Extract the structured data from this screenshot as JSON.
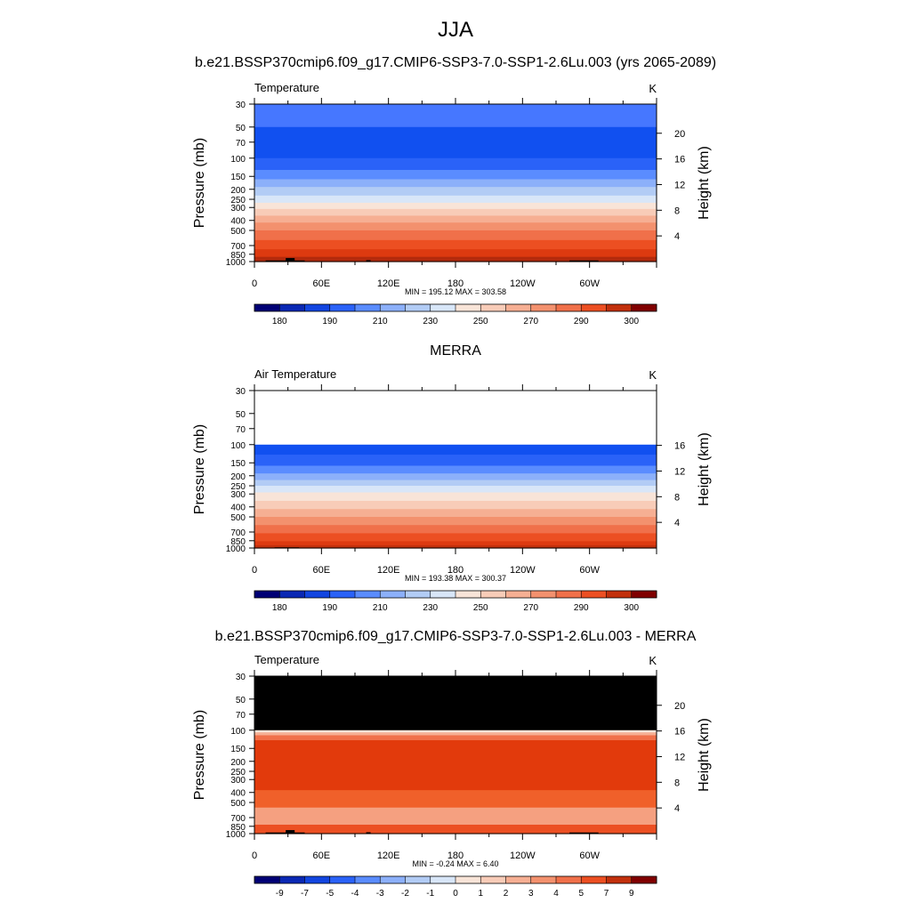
{
  "figure": {
    "title": "JJA",
    "season": "JJA"
  },
  "chart_data": [
    {
      "type": "heatmap",
      "title": "b.e21.BSSP370cmip6.f09_g17.CMIP6-SSP3-7.0-SSP1-2.6Lu.003 (yrs 2065-2089)",
      "left_label": "Temperature",
      "units": "K",
      "ylabel": "Pressure (mb)",
      "y2label": "Height (km)",
      "xticklabels": [
        "0",
        "60E",
        "120E",
        "180",
        "120W",
        "60W"
      ],
      "xtick_lons": [
        0,
        60,
        120,
        180,
        240,
        300
      ],
      "xlim": [
        0,
        360
      ],
      "pressure_levels": [
        30,
        50,
        70,
        100,
        150,
        200,
        250,
        300,
        400,
        500,
        700,
        850,
        1000
      ],
      "ylim_mb": [
        1000,
        30
      ],
      "height_ticks_km": [
        4,
        8,
        12,
        16,
        20
      ],
      "stats": "MIN = 195.12  MAX = 303.58",
      "min": 195.12,
      "max": 303.58,
      "data_top_mb": 30,
      "bands": [
        {
          "top": 30,
          "bottom": 50,
          "color": "#4677FF"
        },
        {
          "top": 50,
          "bottom": 100,
          "color": "#1150F0"
        },
        {
          "top": 100,
          "bottom": 130,
          "color": "#2A62F8"
        },
        {
          "top": 130,
          "bottom": 160,
          "color": "#5A8CFF"
        },
        {
          "top": 160,
          "bottom": 190,
          "color": "#8CB0FA"
        },
        {
          "top": 190,
          "bottom": 230,
          "color": "#B2CCF5"
        },
        {
          "top": 230,
          "bottom": 270,
          "color": "#D8E6F8"
        },
        {
          "top": 270,
          "bottom": 310,
          "color": "#F8E4D8"
        },
        {
          "top": 310,
          "bottom": 360,
          "color": "#F8CCB8"
        },
        {
          "top": 360,
          "bottom": 420,
          "color": "#F6AF93"
        },
        {
          "top": 420,
          "bottom": 500,
          "color": "#F3916E"
        },
        {
          "top": 500,
          "bottom": 620,
          "color": "#F0704A"
        },
        {
          "top": 620,
          "bottom": 760,
          "color": "#EC4F22"
        },
        {
          "top": 760,
          "bottom": 900,
          "color": "#DD3A10"
        },
        {
          "top": 900,
          "bottom": 1000,
          "color": "#B32A0C"
        }
      ],
      "topography": [
        {
          "lon_start": 10,
          "lon_end": 45,
          "top_mb": 975
        },
        {
          "lon_start": 28,
          "lon_end": 36,
          "top_mb": 925
        },
        {
          "lon_start": 100,
          "lon_end": 104,
          "top_mb": 970
        },
        {
          "lon_start": 282,
          "lon_end": 308,
          "top_mb": 975
        }
      ],
      "colorbar": {
        "colors": [
          "#000075",
          "#0A28B4",
          "#1245E0",
          "#2A62F8",
          "#5A8CFF",
          "#8CB0FA",
          "#B2CCF5",
          "#D8E6F8",
          "#F8E4D8",
          "#F8CCB8",
          "#F6AF93",
          "#F3916E",
          "#F0704A",
          "#EC4F22",
          "#C2300C",
          "#800000"
        ],
        "labels": [
          {
            "boundary": 1,
            "text": "180"
          },
          {
            "boundary": 3,
            "text": "190"
          },
          {
            "boundary": 5,
            "text": "210"
          },
          {
            "boundary": 7,
            "text": "230"
          },
          {
            "boundary": 9,
            "text": "250"
          },
          {
            "boundary": 11,
            "text": "270"
          },
          {
            "boundary": 13,
            "text": "290"
          },
          {
            "boundary": 15,
            "text": "300"
          }
        ]
      }
    },
    {
      "type": "heatmap",
      "title": "MERRA",
      "left_label": "Air Temperature",
      "units": "K",
      "ylabel": "Pressure (mb)",
      "y2label": "Height (km)",
      "xticklabels": [
        "0",
        "60E",
        "120E",
        "180",
        "120W",
        "60W"
      ],
      "xtick_lons": [
        0,
        60,
        120,
        180,
        240,
        300
      ],
      "xlim": [
        0,
        360
      ],
      "pressure_levels": [
        30,
        50,
        70,
        100,
        150,
        200,
        250,
        300,
        400,
        500,
        700,
        850,
        1000
      ],
      "ylim_mb": [
        1000,
        30
      ],
      "height_ticks_km": [
        4,
        8,
        12,
        16
      ],
      "stats": "MIN = 193.38  MAX = 300.37",
      "min": 193.38,
      "max": 300.37,
      "data_top_mb": 100,
      "bands": [
        {
          "top": 100,
          "bottom": 125,
          "color": "#1150F0"
        },
        {
          "top": 125,
          "bottom": 160,
          "color": "#2A62F8"
        },
        {
          "top": 160,
          "bottom": 190,
          "color": "#5A8CFF"
        },
        {
          "top": 190,
          "bottom": 220,
          "color": "#8CB0FA"
        },
        {
          "top": 220,
          "bottom": 250,
          "color": "#B2CCF5"
        },
        {
          "top": 250,
          "bottom": 290,
          "color": "#D8E6F8"
        },
        {
          "top": 290,
          "bottom": 350,
          "color": "#F8E4D8"
        },
        {
          "top": 350,
          "bottom": 420,
          "color": "#F8CCB8"
        },
        {
          "top": 420,
          "bottom": 500,
          "color": "#F6AF93"
        },
        {
          "top": 500,
          "bottom": 600,
          "color": "#F3916E"
        },
        {
          "top": 600,
          "bottom": 720,
          "color": "#F0704A"
        },
        {
          "top": 720,
          "bottom": 860,
          "color": "#EC4F22"
        },
        {
          "top": 860,
          "bottom": 940,
          "color": "#DD3A10"
        },
        {
          "top": 940,
          "bottom": 1000,
          "color": "#C2300C"
        }
      ],
      "topography": [
        {
          "lon_start": 18,
          "lon_end": 40,
          "top_mb": 985
        }
      ],
      "colorbar": {
        "colors": [
          "#000075",
          "#0A28B4",
          "#1245E0",
          "#2A62F8",
          "#5A8CFF",
          "#8CB0FA",
          "#B2CCF5",
          "#D8E6F8",
          "#F8E4D8",
          "#F8CCB8",
          "#F6AF93",
          "#F3916E",
          "#F0704A",
          "#EC4F22",
          "#C2300C",
          "#800000"
        ],
        "labels": [
          {
            "boundary": 1,
            "text": "180"
          },
          {
            "boundary": 3,
            "text": "190"
          },
          {
            "boundary": 5,
            "text": "210"
          },
          {
            "boundary": 7,
            "text": "230"
          },
          {
            "boundary": 9,
            "text": "250"
          },
          {
            "boundary": 11,
            "text": "270"
          },
          {
            "boundary": 13,
            "text": "290"
          },
          {
            "boundary": 15,
            "text": "300"
          }
        ]
      }
    },
    {
      "type": "heatmap",
      "title": "b.e21.BSSP370cmip6.f09_g17.CMIP6-SSP3-7.0-SSP1-2.6Lu.003 - MERRA",
      "left_label": "Temperature",
      "units": "K",
      "ylabel": "Pressure (mb)",
      "y2label": "Height (km)",
      "xticklabels": [
        "0",
        "60E",
        "120E",
        "180",
        "120W",
        "60W"
      ],
      "xtick_lons": [
        0,
        60,
        120,
        180,
        240,
        300
      ],
      "xlim": [
        0,
        360
      ],
      "pressure_levels": [
        30,
        50,
        70,
        100,
        150,
        200,
        250,
        300,
        400,
        500,
        700,
        850,
        1000
      ],
      "ylim_mb": [
        1000,
        30
      ],
      "height_ticks_km": [
        4,
        8,
        12,
        16,
        20
      ],
      "stats": "MIN =  -0.24  MAX =   6.40",
      "min": -0.24,
      "max": 6.4,
      "data_top_mb": 30,
      "missing_above_mb": 100,
      "missing_color": "#000000",
      "bands": [
        {
          "top": 30,
          "bottom": 100,
          "color": "#000000"
        },
        {
          "top": 100,
          "bottom": 105,
          "color": "#F8E4D8"
        },
        {
          "top": 105,
          "bottom": 112,
          "color": "#F6AF93"
        },
        {
          "top": 112,
          "bottom": 125,
          "color": "#F0704A"
        },
        {
          "top": 125,
          "bottom": 380,
          "color": "#E23A0C"
        },
        {
          "top": 380,
          "bottom": 560,
          "color": "#F0602A"
        },
        {
          "top": 560,
          "bottom": 820,
          "color": "#F5A080"
        },
        {
          "top": 820,
          "bottom": 1000,
          "color": "#EC4F22"
        }
      ],
      "topography": [
        {
          "lon_start": 10,
          "lon_end": 45,
          "top_mb": 975
        },
        {
          "lon_start": 28,
          "lon_end": 36,
          "top_mb": 925
        },
        {
          "lon_start": 100,
          "lon_end": 104,
          "top_mb": 970
        },
        {
          "lon_start": 282,
          "lon_end": 308,
          "top_mb": 975
        }
      ],
      "colorbar": {
        "colors": [
          "#000075",
          "#0A28B4",
          "#1245E0",
          "#2A62F8",
          "#5A8CFF",
          "#8CB0FA",
          "#B2CCF5",
          "#D8E6F8",
          "#F8E4D8",
          "#F8CCB8",
          "#F6AF93",
          "#F3916E",
          "#F0704A",
          "#EC4F22",
          "#C2300C",
          "#800000"
        ],
        "labels": [
          {
            "boundary": 1,
            "text": "-9"
          },
          {
            "boundary": 2,
            "text": "-7"
          },
          {
            "boundary": 3,
            "text": "-5"
          },
          {
            "boundary": 4,
            "text": "-4"
          },
          {
            "boundary": 5,
            "text": "-3"
          },
          {
            "boundary": 6,
            "text": "-2"
          },
          {
            "boundary": 7,
            "text": "-1"
          },
          {
            "boundary": 8,
            "text": "0"
          },
          {
            "boundary": 9,
            "text": "1"
          },
          {
            "boundary": 10,
            "text": "2"
          },
          {
            "boundary": 11,
            "text": "3"
          },
          {
            "boundary": 12,
            "text": "4"
          },
          {
            "boundary": 13,
            "text": "5"
          },
          {
            "boundary": 14,
            "text": "7"
          },
          {
            "boundary": 15,
            "text": "9"
          }
        ]
      }
    }
  ]
}
